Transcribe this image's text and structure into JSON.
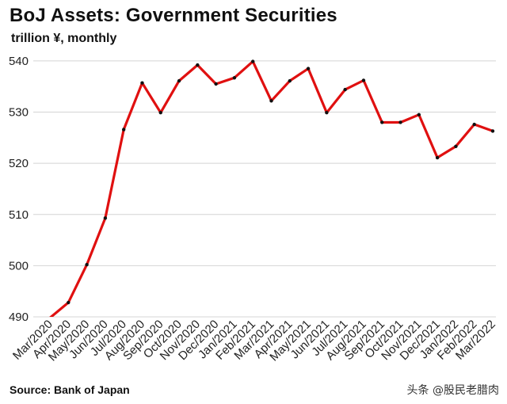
{
  "chart_data": {
    "type": "line",
    "title": "BoJ Assets: Government Securities",
    "subtitle": "trillion ¥, monthly",
    "source": "Source: Bank of Japan",
    "categories": [
      "Mar/2020",
      "Apr/2020",
      "May/2020",
      "Jun/2020",
      "Jul/2020",
      "Aug/2020",
      "Sep/2020",
      "Oct/2020",
      "Nov/2020",
      "Dec/2020",
      "Jan/2021",
      "Feb/2021",
      "Mar/2021",
      "Apr/2021",
      "May/2021",
      "Jun/2021",
      "Jul/2021",
      "Aug/2021",
      "Sep/2021",
      "Oct/2021",
      "Nov/2021",
      "Dec/2021",
      "Jan/2022",
      "Feb/2022",
      "Mar/2022"
    ],
    "series": [
      {
        "values": [
          489.8,
          492.8,
          500.2,
          509.3,
          526.6,
          535.7,
          529.9,
          536.1,
          539.2,
          535.5,
          536.7,
          539.9,
          532.2,
          536.1,
          538.5,
          529.9,
          534.4,
          536.2,
          528.0,
          528.0,
          529.5,
          521.1,
          523.3,
          527.6,
          526.3
        ],
        "color": "#e01010"
      }
    ],
    "yticks": [
      490,
      500,
      510,
      520,
      530,
      540
    ],
    "ylim": [
      490,
      542
    ],
    "grid": true,
    "legend": "none",
    "marker_color": "#111111"
  },
  "watermark": "头条 @股民老腊肉"
}
